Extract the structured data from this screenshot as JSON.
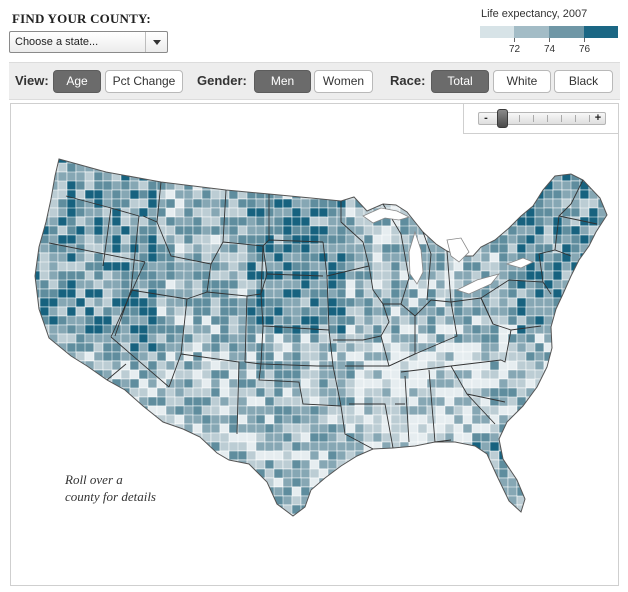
{
  "find": {
    "title": "FIND YOUR COUNTY:",
    "select_value": "Choose a state..."
  },
  "legend": {
    "title": "Life expectancy, 2007",
    "labels": [
      "72",
      "74",
      "76"
    ],
    "colors": [
      "#d7e3e7",
      "#a3bcc6",
      "#6f97a6",
      "#1b6784"
    ]
  },
  "toolbar": {
    "view_label": "View:",
    "view_options": [
      "Age",
      "Pct Change"
    ],
    "gender_label": "Gender:",
    "gender_options": [
      "Men",
      "Women"
    ],
    "race_label": "Race:",
    "race_options": [
      "Total",
      "White",
      "Black"
    ],
    "selected": {
      "view": "Age",
      "gender": "Men",
      "race": "Total"
    }
  },
  "zoom": {
    "minus": "-",
    "plus": "+",
    "level": 0
  },
  "map": {
    "rollover_line1": "Roll over a",
    "rollover_line2": "county for details",
    "colors": {
      "lowest": "#e6edf0",
      "low": "#bccdd4",
      "mid": "#86a7b4",
      "high": "#5f8d9e",
      "highest": "#17627f",
      "border": "#ffffff",
      "state_line": "#333333"
    }
  }
}
